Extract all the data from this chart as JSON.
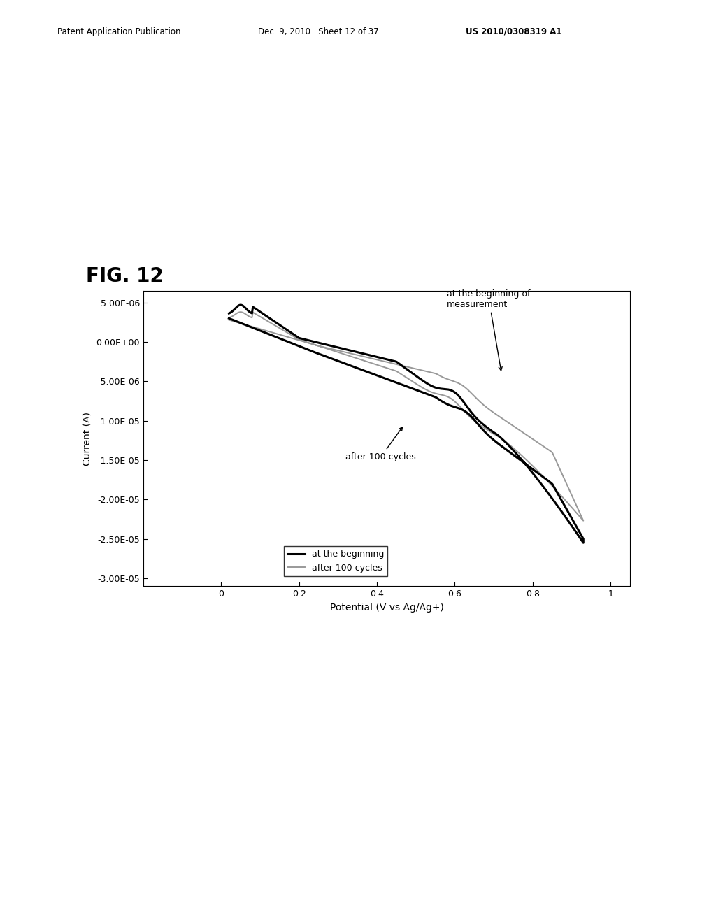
{
  "fig_label": "FIG. 12",
  "header_left": "Patent Application Publication",
  "header_mid": "Dec. 9, 2010   Sheet 12 of 37",
  "header_right": "US 2010/0308319 A1",
  "xlabel": "Potential (V vs Ag/Ag+)",
  "ylabel": "Current (A)",
  "xlim": [
    -0.2,
    1.05
  ],
  "ylim": [
    -3.1e-05,
    6.5e-06
  ],
  "xticks": [
    0,
    0.2,
    0.4,
    0.6,
    0.8,
    1.0
  ],
  "xtick_labels": [
    "0",
    "0.2",
    "0.4",
    "0.6",
    "0.8",
    "1"
  ],
  "yticks": [
    -3e-05,
    -2.5e-05,
    -2e-05,
    -1.5e-05,
    -1e-05,
    -5e-06,
    0.0,
    5e-06
  ],
  "ytick_labels": [
    "-3.00E-05",
    "-2.50E-05",
    "-2.00E-05",
    "-1.50E-05",
    "-1.00E-05",
    "-5.00E-06",
    "0.00E+00",
    "5.00E-06"
  ],
  "legend_entries": [
    "at the beginning",
    "after 100 cycles"
  ],
  "line_colors_begin": [
    "black",
    "black"
  ],
  "line_colors_100": [
    "#888888",
    "#888888"
  ],
  "lw_begin": 2.2,
  "lw_100": 1.4,
  "background_color": "white",
  "plot_bg_color": "white"
}
